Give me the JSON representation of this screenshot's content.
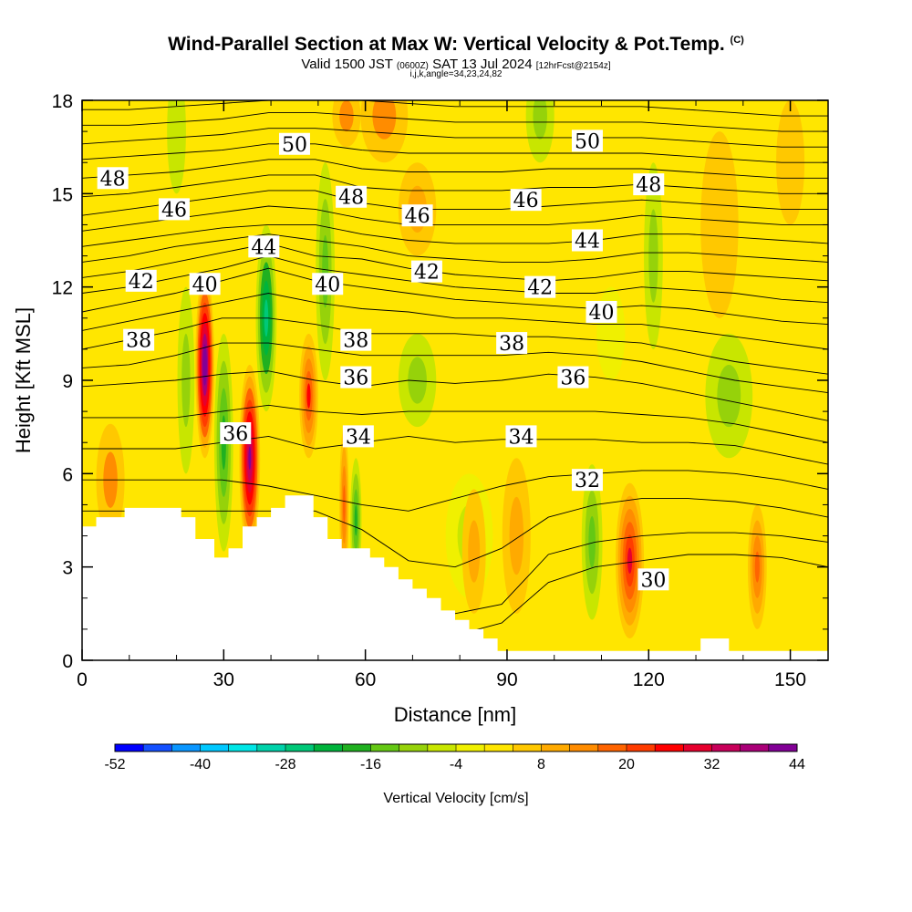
{
  "title": "Wind-Parallel Section at Max W: Vertical Velocity & Pot.Temp.",
  "copyright": "(C)",
  "subtitle_main": "Valid 1500 JST",
  "subtitle_utc": "(0600Z)",
  "subtitle_date": "SAT 13 Jul 2024",
  "subtitle_fcst": "[12hrFcst@2154z]",
  "subtitle_small": "i,j,k,angle=34,23,24,82",
  "chart_data": {
    "type": "heatmap",
    "xlabel": "Distance [nm]",
    "ylabel": "Height [Kft MSL]",
    "xlim": [
      0,
      158
    ],
    "ylim": [
      0,
      18
    ],
    "xticks": [
      "0",
      "30",
      "60",
      "90",
      "120",
      "150"
    ],
    "yticks": [
      "0",
      "3",
      "6",
      "9",
      "12",
      "15",
      "18"
    ],
    "colorbar": {
      "title": "Vertical Velocity [cm/s]",
      "labels": [
        "-52",
        "-40",
        "-28",
        "-16",
        "-4",
        "8",
        "20",
        "32",
        "44"
      ],
      "colors": [
        "#0000ff",
        "#1450ff",
        "#0a96ff",
        "#00c8ff",
        "#00e6e6",
        "#00d2aa",
        "#00c878",
        "#00b43c",
        "#20b020",
        "#64c814",
        "#96d20a",
        "#c8e600",
        "#f0f000",
        "#ffe600",
        "#ffc800",
        "#ffaa00",
        "#ff8c00",
        "#ff6400",
        "#ff3c00",
        "#ff0000",
        "#e6002d",
        "#c8005a",
        "#aa0078",
        "#820096"
      ]
    },
    "contour_labels": [
      {
        "text": "48",
        "x": 6.5,
        "y": 15.5
      },
      {
        "text": "50",
        "x": 45,
        "y": 16.6
      },
      {
        "text": "50",
        "x": 107,
        "y": 16.7
      },
      {
        "text": "46",
        "x": 19.5,
        "y": 14.5
      },
      {
        "text": "48",
        "x": 57,
        "y": 14.9
      },
      {
        "text": "46",
        "x": 71,
        "y": 14.3
      },
      {
        "text": "46",
        "x": 94,
        "y": 14.8
      },
      {
        "text": "48",
        "x": 120,
        "y": 15.3
      },
      {
        "text": "44",
        "x": 38.5,
        "y": 13.3
      },
      {
        "text": "44",
        "x": 107,
        "y": 13.5
      },
      {
        "text": "42",
        "x": 12.5,
        "y": 12.2
      },
      {
        "text": "40",
        "x": 26,
        "y": 12.1
      },
      {
        "text": "40",
        "x": 52,
        "y": 12.1
      },
      {
        "text": "42",
        "x": 73,
        "y": 12.5
      },
      {
        "text": "42",
        "x": 97,
        "y": 12
      },
      {
        "text": "40",
        "x": 110,
        "y": 11.2
      },
      {
        "text": "38",
        "x": 12,
        "y": 10.3
      },
      {
        "text": "38",
        "x": 58,
        "y": 10.3
      },
      {
        "text": "38",
        "x": 91,
        "y": 10.2
      },
      {
        "text": "36",
        "x": 58,
        "y": 9.1
      },
      {
        "text": "36",
        "x": 104,
        "y": 9.1
      },
      {
        "text": "36",
        "x": 32.5,
        "y": 7.3
      },
      {
        "text": "34",
        "x": 58.5,
        "y": 7.2
      },
      {
        "text": "34",
        "x": 93,
        "y": 7.2
      },
      {
        "text": "32",
        "x": 107,
        "y": 5.8
      },
      {
        "text": "30",
        "x": 121,
        "y": 2.6
      }
    ],
    "isentropes": [
      {
        "theta": 30,
        "y": [
          0.5,
          0.5,
          0.5,
          0.5,
          0.5,
          0.5,
          0.5,
          0.5,
          0.8,
          1.2,
          2.5,
          3.0,
          3.2,
          3.4,
          3.4,
          3.3,
          3.0
        ]
      },
      {
        "theta": 31,
        "y": [
          1.5,
          1.5,
          1.5,
          1.5,
          1.5,
          1.5,
          1.5,
          1.5,
          1.5,
          1.8,
          3.4,
          3.8,
          4.0,
          4.1,
          4.1,
          4.0,
          3.8
        ]
      },
      {
        "theta": 32,
        "y": [
          4.8,
          4.8,
          4.8,
          4.8,
          4.8,
          4.8,
          4.2,
          3.2,
          3.0,
          3.6,
          4.6,
          5.0,
          5.2,
          5.2,
          5.1,
          4.9,
          4.6
        ]
      },
      {
        "theta": 33,
        "y": [
          5.8,
          5.8,
          5.8,
          5.8,
          5.6,
          5.3,
          5.0,
          4.8,
          5.2,
          5.6,
          5.9,
          6.0,
          6.1,
          6.1,
          6.0,
          5.8,
          5.5
        ]
      },
      {
        "theta": 34,
        "y": [
          6.8,
          6.8,
          6.8,
          7.0,
          7.2,
          6.8,
          7.0,
          7.2,
          7.0,
          7.1,
          7.1,
          7.1,
          7.0,
          7.0,
          6.9,
          6.6,
          6.3
        ]
      },
      {
        "theta": 35,
        "y": [
          7.8,
          7.8,
          7.8,
          8.0,
          8.2,
          8.0,
          7.9,
          8.0,
          8.0,
          8.0,
          8.0,
          8.0,
          7.9,
          7.8,
          7.6,
          7.3,
          7.0
        ]
      },
      {
        "theta": 36,
        "y": [
          8.8,
          8.9,
          9.0,
          9.2,
          9.3,
          9.0,
          8.8,
          9.0,
          8.9,
          9.0,
          9.2,
          9.1,
          8.9,
          8.6,
          8.3,
          8.0,
          7.7
        ]
      },
      {
        "theta": 37,
        "y": [
          9.4,
          9.5,
          9.8,
          10.2,
          10.2,
          10.0,
          9.8,
          9.8,
          9.8,
          9.8,
          9.9,
          9.8,
          9.6,
          9.3,
          9.0,
          8.8,
          8.6
        ]
      },
      {
        "theta": 38,
        "y": [
          10.0,
          10.3,
          10.6,
          11.0,
          11.0,
          10.8,
          10.5,
          10.5,
          10.5,
          10.4,
          10.4,
          10.3,
          10.2,
          9.9,
          9.6,
          9.4,
          9.2
        ]
      },
      {
        "theta": 39,
        "y": [
          10.6,
          10.9,
          11.2,
          11.5,
          11.8,
          11.5,
          11.3,
          11.2,
          11.0,
          11.0,
          10.9,
          10.8,
          10.8,
          10.6,
          10.4,
          10.2,
          10.0
        ]
      },
      {
        "theta": 40,
        "y": [
          11.2,
          11.5,
          11.8,
          12.2,
          12.6,
          12.2,
          12.0,
          11.8,
          11.6,
          11.5,
          11.4,
          11.3,
          11.4,
          11.3,
          11.1,
          10.9,
          10.8
        ]
      },
      {
        "theta": 41,
        "y": [
          11.8,
          12.0,
          12.3,
          12.6,
          13.0,
          12.6,
          12.4,
          12.2,
          12.0,
          11.9,
          11.8,
          11.8,
          12.0,
          11.9,
          11.8,
          11.6,
          11.5
        ]
      },
      {
        "theta": 42,
        "y": [
          12.3,
          12.5,
          12.8,
          13.1,
          13.4,
          13.0,
          12.9,
          12.6,
          12.4,
          12.3,
          12.2,
          12.3,
          12.5,
          12.5,
          12.4,
          12.3,
          12.2
        ]
      },
      {
        "theta": 43,
        "y": [
          12.8,
          13.0,
          13.3,
          13.5,
          13.7,
          13.5,
          13.3,
          13.0,
          12.9,
          12.8,
          12.8,
          12.9,
          13.1,
          13.1,
          13.0,
          12.9,
          12.8
        ]
      },
      {
        "theta": 44,
        "y": [
          13.3,
          13.5,
          13.7,
          13.9,
          14.0,
          14.0,
          13.7,
          13.5,
          13.4,
          13.4,
          13.4,
          13.5,
          13.7,
          13.7,
          13.6,
          13.5,
          13.4
        ]
      },
      {
        "theta": 45,
        "y": [
          13.8,
          14.0,
          14.2,
          14.4,
          14.6,
          14.5,
          14.2,
          14.0,
          14.0,
          14.0,
          14.0,
          14.1,
          14.3,
          14.2,
          14.1,
          14.0,
          14.0
        ]
      },
      {
        "theta": 46,
        "y": [
          14.3,
          14.5,
          14.7,
          14.9,
          15.1,
          15.1,
          14.7,
          14.5,
          14.5,
          14.5,
          14.6,
          14.7,
          14.8,
          14.7,
          14.6,
          14.5,
          14.5
        ]
      },
      {
        "theta": 47,
        "y": [
          14.9,
          15.0,
          15.2,
          15.4,
          15.6,
          15.6,
          15.2,
          15.1,
          15.1,
          15.1,
          15.2,
          15.2,
          15.3,
          15.2,
          15.1,
          15.0,
          15.0
        ]
      },
      {
        "theta": 48,
        "y": [
          15.5,
          15.6,
          15.7,
          15.9,
          16.1,
          16.1,
          15.8,
          15.7,
          15.7,
          15.7,
          15.8,
          15.8,
          15.8,
          15.7,
          15.6,
          15.5,
          15.5
        ]
      },
      {
        "theta": 49,
        "y": [
          16.1,
          16.2,
          16.3,
          16.4,
          16.6,
          16.6,
          16.4,
          16.3,
          16.3,
          16.3,
          16.3,
          16.3,
          16.3,
          16.2,
          16.1,
          16.0,
          16.0
        ]
      },
      {
        "theta": 50,
        "y": [
          16.6,
          16.7,
          16.8,
          16.9,
          17.1,
          17.1,
          17.0,
          16.9,
          16.8,
          16.8,
          16.8,
          16.8,
          16.8,
          16.7,
          16.6,
          16.5,
          16.5
        ]
      },
      {
        "theta": 51,
        "y": [
          17.2,
          17.2,
          17.3,
          17.4,
          17.6,
          17.6,
          17.5,
          17.4,
          17.3,
          17.3,
          17.3,
          17.3,
          17.3,
          17.2,
          17.1,
          17.0,
          17.0
        ]
      },
      {
        "theta": 52,
        "y": [
          17.7,
          17.7,
          17.8,
          17.9,
          18.0,
          18.0,
          18.0,
          17.9,
          17.8,
          17.8,
          17.8,
          17.8,
          17.8,
          17.7,
          17.6,
          17.5,
          17.5
        ]
      }
    ],
    "terrain": [
      [
        0,
        4.3
      ],
      [
        3,
        4.3
      ],
      [
        3,
        4.6
      ],
      [
        9,
        4.6
      ],
      [
        9,
        4.9
      ],
      [
        21,
        4.9
      ],
      [
        21,
        4.6
      ],
      [
        24,
        4.6
      ],
      [
        24,
        3.9
      ],
      [
        28,
        3.9
      ],
      [
        28,
        3.3
      ],
      [
        31,
        3.3
      ],
      [
        31,
        3.6
      ],
      [
        34,
        3.6
      ],
      [
        34,
        4.3
      ],
      [
        37,
        4.3
      ],
      [
        37,
        4.6
      ],
      [
        40,
        4.6
      ],
      [
        40,
        4.9
      ],
      [
        43,
        4.9
      ],
      [
        43,
        5.3
      ],
      [
        49,
        5.3
      ],
      [
        49,
        4.6
      ],
      [
        52,
        4.6
      ],
      [
        52,
        3.9
      ],
      [
        55,
        3.9
      ],
      [
        55,
        3.6
      ],
      [
        61,
        3.6
      ],
      [
        61,
        3.3
      ],
      [
        64,
        3.3
      ],
      [
        64,
        3.0
      ],
      [
        67,
        3.0
      ],
      [
        67,
        2.6
      ],
      [
        70,
        2.6
      ],
      [
        70,
        2.3
      ],
      [
        73,
        2.3
      ],
      [
        73,
        2.0
      ],
      [
        76,
        2.0
      ],
      [
        76,
        1.6
      ],
      [
        79,
        1.6
      ],
      [
        79,
        1.3
      ],
      [
        82,
        1.3
      ],
      [
        82,
        1.0
      ],
      [
        85,
        1.0
      ],
      [
        85,
        0.7
      ],
      [
        88,
        0.7
      ],
      [
        88,
        0.3
      ],
      [
        131,
        0.3
      ],
      [
        131,
        0.7
      ],
      [
        137,
        0.7
      ],
      [
        137,
        0.3
      ],
      [
        158,
        0.3
      ],
      [
        158,
        0
      ],
      [
        0,
        0
      ]
    ],
    "updraft_cells": [
      {
        "x": 26,
        "y": 9.5,
        "rx": 2.0,
        "ry": 3.0,
        "w": 46
      },
      {
        "x": 35.5,
        "y": 6.5,
        "rx": 2.2,
        "ry": 3.0,
        "w": 40
      },
      {
        "x": 48,
        "y": 8.5,
        "rx": 2.0,
        "ry": 2.0,
        "w": 24
      },
      {
        "x": 116,
        "y": 3.2,
        "rx": 3.0,
        "ry": 2.5,
        "w": 28
      },
      {
        "x": 143,
        "y": 3.0,
        "rx": 2.0,
        "ry": 2.0,
        "w": 18
      },
      {
        "x": 6,
        "y": 5.8,
        "rx": 3.0,
        "ry": 1.8,
        "w": 12
      },
      {
        "x": 92,
        "y": 4.0,
        "rx": 3.0,
        "ry": 2.5,
        "w": 10
      },
      {
        "x": 83,
        "y": 3.5,
        "rx": 2.5,
        "ry": 2.0,
        "w": 10
      },
      {
        "x": 55.5,
        "y": 5.0,
        "rx": 1.0,
        "ry": 2.5,
        "w": 18
      },
      {
        "x": 64,
        "y": 17.5,
        "rx": 5.0,
        "ry": 1.5,
        "w": 12
      },
      {
        "x": 71,
        "y": 14.5,
        "rx": 4.0,
        "ry": 1.5,
        "w": 8
      },
      {
        "x": 56,
        "y": 17.5,
        "rx": 3.0,
        "ry": 1.0,
        "w": 12
      },
      {
        "x": 135,
        "y": 14,
        "rx": 4.0,
        "ry": 3.0,
        "w": 6
      },
      {
        "x": 150,
        "y": 16,
        "rx": 3.0,
        "ry": 2.0,
        "w": 6
      }
    ],
    "downdraft_cells": [
      {
        "x": 30,
        "y": 7.0,
        "rx": 2.0,
        "ry": 3.5,
        "w": -20
      },
      {
        "x": 39,
        "y": 11.0,
        "rx": 2.2,
        "ry": 3.0,
        "w": -26
      },
      {
        "x": 51.5,
        "y": 12.5,
        "rx": 2.0,
        "ry": 3.5,
        "w": -14
      },
      {
        "x": 22,
        "y": 9.0,
        "rx": 1.8,
        "ry": 3.0,
        "w": -12
      },
      {
        "x": 58,
        "y": 4.5,
        "rx": 1.2,
        "ry": 2.0,
        "w": -18
      },
      {
        "x": 71,
        "y": 9.0,
        "rx": 4.0,
        "ry": 1.5,
        "w": -12
      },
      {
        "x": 108,
        "y": 3.8,
        "rx": 2.2,
        "ry": 2.5,
        "w": -16
      },
      {
        "x": 121,
        "y": 13.0,
        "rx": 2.0,
        "ry": 3.0,
        "w": -12
      },
      {
        "x": 97,
        "y": 17.5,
        "rx": 3.0,
        "ry": 1.5,
        "w": -12
      },
      {
        "x": 137,
        "y": 8.5,
        "rx": 5.0,
        "ry": 2.0,
        "w": -10
      },
      {
        "x": 82,
        "y": 4.0,
        "rx": 5.0,
        "ry": 2.0,
        "w": -6
      },
      {
        "x": 20,
        "y": 17.0,
        "rx": 2.0,
        "ry": 2.0,
        "w": -8
      },
      {
        "x": 112,
        "y": 10.5,
        "rx": 3.0,
        "ry": 1.5,
        "w": -4
      }
    ]
  }
}
